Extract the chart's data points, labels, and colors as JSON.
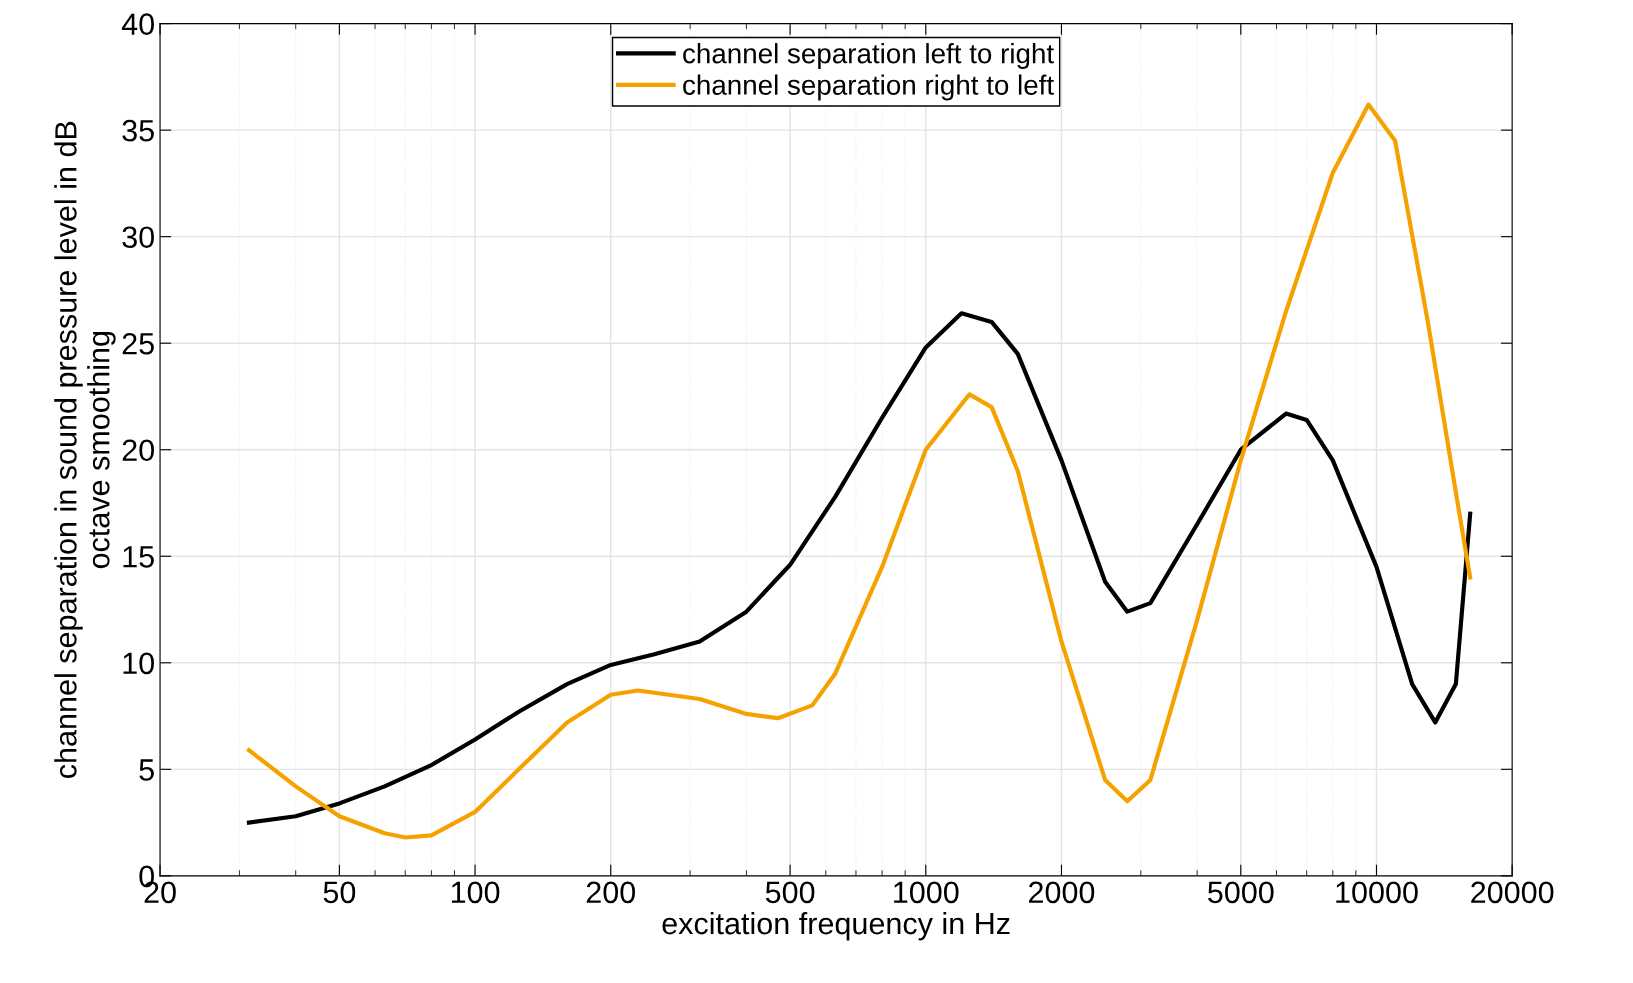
{
  "chart_data": {
    "type": "line",
    "xlabel": "excitation frequency in Hz",
    "ylabel": "channel separation in sound pressure level in dB\noctave smoothing",
    "log": "x",
    "xlim": [
      20,
      20000
    ],
    "xticks": [
      20,
      50,
      100,
      200,
      500,
      1000,
      2000,
      5000,
      10000,
      20000
    ],
    "ylim": [
      0,
      40
    ],
    "yticks": [
      0,
      5,
      10,
      15,
      20,
      25,
      30,
      35,
      40
    ],
    "grid": true,
    "legend": "top",
    "series": [
      {
        "name": "channel separation left to right",
        "color": "#000000",
        "x": [
          31.5,
          40,
          50,
          63,
          80,
          100,
          125,
          160,
          200,
          250,
          315,
          400,
          500,
          630,
          800,
          1000,
          1200,
          1400,
          1600,
          2000,
          2500,
          2800,
          3150,
          4000,
          5000,
          6300,
          7000,
          8000,
          10000,
          12000,
          13500,
          15000,
          16140
        ],
        "values": [
          2.5,
          2.8,
          3.4,
          4.2,
          5.2,
          6.4,
          7.7,
          9.0,
          9.9,
          10.4,
          11.0,
          12.4,
          14.6,
          17.8,
          21.5,
          24.8,
          26.4,
          26.0,
          24.5,
          19.5,
          13.8,
          12.4,
          12.8,
          16.5,
          20.0,
          21.7,
          21.4,
          19.5,
          14.5,
          9.0,
          7.2,
          9.0,
          17.0
        ]
      },
      {
        "name": "channel separation right to left",
        "color": "#f5a200",
        "x": [
          31.5,
          40,
          50,
          63,
          70,
          80,
          100,
          125,
          160,
          200,
          230,
          315,
          400,
          470,
          560,
          630,
          800,
          1000,
          1250,
          1400,
          1600,
          2000,
          2500,
          2800,
          3150,
          4000,
          5000,
          6300,
          8000,
          9600,
          11000,
          13000,
          15000,
          16140
        ],
        "values": [
          5.9,
          4.2,
          2.8,
          2.0,
          1.8,
          1.9,
          3.0,
          5.0,
          7.2,
          8.5,
          8.7,
          8.3,
          7.6,
          7.4,
          8.0,
          9.5,
          14.5,
          20.0,
          22.6,
          22.0,
          19.0,
          11.0,
          4.5,
          3.5,
          4.5,
          12.0,
          19.5,
          26.5,
          33.0,
          36.2,
          34.5,
          26.0,
          18.0,
          14.0
        ]
      }
    ]
  }
}
